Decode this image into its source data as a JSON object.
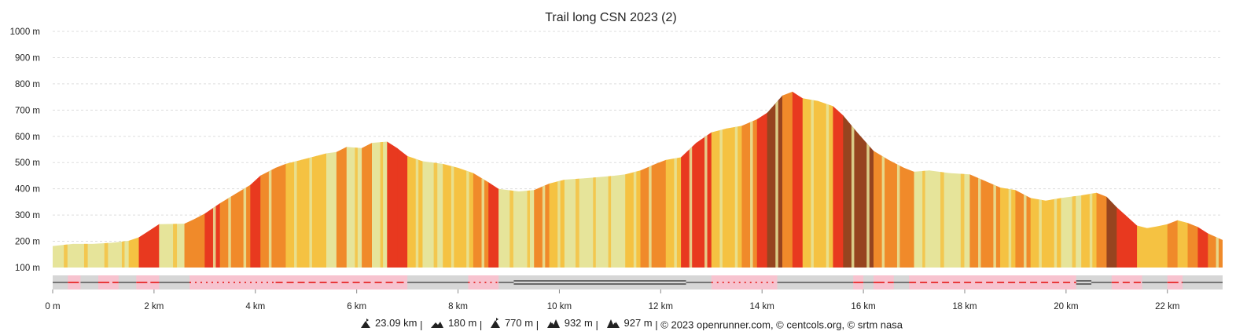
{
  "chart_data": {
    "type": "area",
    "title": "Trail long CSN 2023 (2)",
    "y_ticks": [
      "100 m",
      "200 m",
      "300 m",
      "400 m",
      "500 m",
      "600 m",
      "700 m",
      "800 m",
      "900 m",
      "1000 m"
    ],
    "x_ticks": [
      "0 m",
      "2 km",
      "4 km",
      "6 km",
      "8 km",
      "10 km",
      "12 km",
      "14 km",
      "16 km",
      "18 km",
      "20 km",
      "22 km"
    ],
    "xlim": [
      0,
      23.09
    ],
    "ylim": [
      100,
      1000
    ],
    "grid": true,
    "slope_colors": {
      "flat": "#e6e49a",
      "light": "#f5c242",
      "moderate": "#f08a2a",
      "steep": "#e8391f",
      "very_steep": "#96441f"
    },
    "elevation_profile": [
      [
        0,
        182
      ],
      [
        0.4,
        190
      ],
      [
        0.8,
        190
      ],
      [
        1.2,
        195
      ],
      [
        1.5,
        202
      ],
      [
        1.7,
        215
      ],
      [
        1.9,
        240
      ],
      [
        2.1,
        265
      ],
      [
        2.6,
        267
      ],
      [
        2.8,
        285
      ],
      [
        3.0,
        305
      ],
      [
        3.3,
        345
      ],
      [
        3.6,
        380
      ],
      [
        3.9,
        415
      ],
      [
        4.1,
        450
      ],
      [
        4.4,
        480
      ],
      [
        4.6,
        495
      ],
      [
        4.9,
        510
      ],
      [
        5.2,
        525
      ],
      [
        5.4,
        535
      ],
      [
        5.6,
        540
      ],
      [
        5.8,
        560
      ],
      [
        6.1,
        555
      ],
      [
        6.3,
        575
      ],
      [
        6.6,
        580
      ],
      [
        6.8,
        555
      ],
      [
        7.0,
        525
      ],
      [
        7.3,
        505
      ],
      [
        7.7,
        495
      ],
      [
        8.0,
        480
      ],
      [
        8.3,
        460
      ],
      [
        8.6,
        425
      ],
      [
        8.8,
        400
      ],
      [
        9.2,
        390
      ],
      [
        9.5,
        395
      ],
      [
        9.8,
        420
      ],
      [
        10.1,
        435
      ],
      [
        10.5,
        440
      ],
      [
        10.8,
        445
      ],
      [
        11.1,
        450
      ],
      [
        11.3,
        455
      ],
      [
        11.6,
        470
      ],
      [
        11.9,
        495
      ],
      [
        12.1,
        510
      ],
      [
        12.4,
        520
      ],
      [
        12.7,
        575
      ],
      [
        13.0,
        615
      ],
      [
        13.3,
        630
      ],
      [
        13.6,
        640
      ],
      [
        13.9,
        665
      ],
      [
        14.1,
        690
      ],
      [
        14.4,
        755
      ],
      [
        14.6,
        770
      ],
      [
        14.8,
        745
      ],
      [
        15.1,
        735
      ],
      [
        15.4,
        715
      ],
      [
        15.6,
        680
      ],
      [
        15.9,
        610
      ],
      [
        16.2,
        545
      ],
      [
        16.5,
        510
      ],
      [
        16.8,
        480
      ],
      [
        17.0,
        465
      ],
      [
        17.3,
        470
      ],
      [
        17.7,
        460
      ],
      [
        18.1,
        455
      ],
      [
        18.4,
        430
      ],
      [
        18.7,
        405
      ],
      [
        19.0,
        395
      ],
      [
        19.3,
        365
      ],
      [
        19.6,
        355
      ],
      [
        19.9,
        365
      ],
      [
        20.3,
        375
      ],
      [
        20.6,
        385
      ],
      [
        20.8,
        370
      ],
      [
        21.0,
        330
      ],
      [
        21.2,
        295
      ],
      [
        21.4,
        260
      ],
      [
        21.6,
        250
      ],
      [
        21.8,
        257
      ],
      [
        22.0,
        265
      ],
      [
        22.2,
        280
      ],
      [
        22.4,
        270
      ],
      [
        22.6,
        255
      ],
      [
        22.8,
        230
      ],
      [
        23.09,
        205
      ]
    ],
    "surface_segments": [
      [
        0,
        0.3,
        "mixed"
      ],
      [
        0.3,
        0.55,
        "pink"
      ],
      [
        0.55,
        0.9,
        "mixed"
      ],
      [
        0.9,
        1.3,
        "pink"
      ],
      [
        1.3,
        1.65,
        "mixed"
      ],
      [
        1.65,
        2.1,
        "pink"
      ],
      [
        2.1,
        2.7,
        "mixed"
      ],
      [
        2.7,
        4.4,
        "pink-dotted"
      ],
      [
        4.4,
        7.0,
        "pink-dashed"
      ],
      [
        7.0,
        8.2,
        "mixed"
      ],
      [
        8.2,
        8.8,
        "pink-dotted"
      ],
      [
        8.8,
        9.1,
        "mixed"
      ],
      [
        9.1,
        12.5,
        "double"
      ],
      [
        12.5,
        13.0,
        "mixed"
      ],
      [
        13.0,
        14.3,
        "pink-dotted"
      ],
      [
        14.3,
        15.8,
        "mixed"
      ],
      [
        15.8,
        16.0,
        "pink"
      ],
      [
        16.0,
        16.2,
        "mixed"
      ],
      [
        16.2,
        16.6,
        "pink"
      ],
      [
        16.6,
        16.9,
        "mixed"
      ],
      [
        16.9,
        20.2,
        "pink-dashed"
      ],
      [
        20.2,
        20.5,
        "double"
      ],
      [
        20.5,
        20.9,
        "mixed"
      ],
      [
        20.9,
        21.5,
        "pink-dashed"
      ],
      [
        21.5,
        22.0,
        "mixed"
      ],
      [
        22.0,
        22.3,
        "pink"
      ],
      [
        22.3,
        23.09,
        "mixed"
      ]
    ]
  },
  "footer": {
    "distance": "23.09 km",
    "elevation_min": "180 m",
    "elevation_max": "770 m",
    "elevation_gain": "932 m",
    "elevation_loss": "927 m",
    "credits": "© 2023 openrunner.com, © centcols.org, © srtm nasa",
    "separator": "|"
  }
}
